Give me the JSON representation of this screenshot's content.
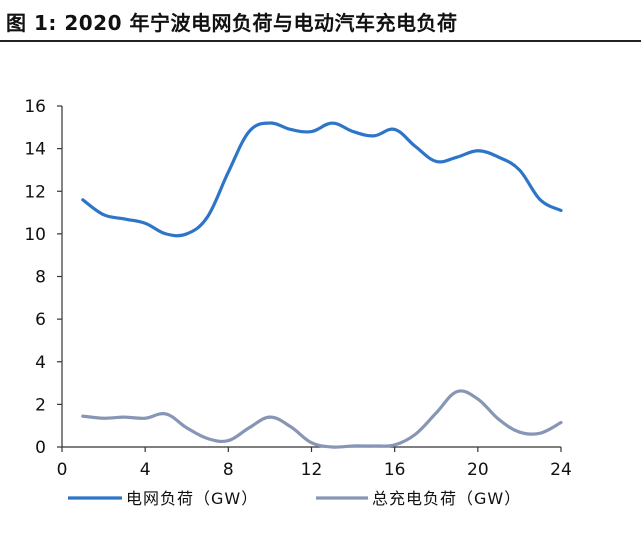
{
  "figure": {
    "title": "图 1:  2020 年宁波电网负荷与电动汽车充电负荷"
  },
  "colors": {
    "series_grid": "#2E75C8",
    "series_ev": "#8696B4",
    "axis": "#333333",
    "text": "#111111"
  },
  "chart_data": {
    "type": "line",
    "title": "2020 年宁波电网负荷与电动汽车充电负荷",
    "xlabel": "",
    "ylabel": "",
    "xlim": [
      0,
      24
    ],
    "ylim": [
      0,
      16
    ],
    "xticks": [
      0,
      4,
      8,
      12,
      16,
      20,
      24
    ],
    "yticks": [
      0,
      2,
      4,
      6,
      8,
      10,
      12,
      14,
      16
    ],
    "legend_position": "bottom",
    "grid": false,
    "series": [
      {
        "name": "电网负荷（GW）",
        "x": [
          1,
          2,
          3,
          4,
          5,
          6,
          7,
          8,
          9,
          10,
          11,
          12,
          13,
          14,
          15,
          16,
          17,
          18,
          19,
          20,
          21,
          22,
          23,
          24
        ],
        "values": [
          11.6,
          10.9,
          10.7,
          10.5,
          10.0,
          10.0,
          10.8,
          12.9,
          14.8,
          15.2,
          14.9,
          14.8,
          15.2,
          14.8,
          14.6,
          14.9,
          14.1,
          13.4,
          13.6,
          13.9,
          13.6,
          13.0,
          11.6,
          11.1
        ]
      },
      {
        "name": "总充电负荷（GW）",
        "x": [
          1,
          2,
          3,
          4,
          5,
          6,
          7,
          8,
          9,
          10,
          11,
          12,
          13,
          14,
          15,
          16,
          17,
          18,
          19,
          20,
          21,
          22,
          23,
          24
        ],
        "values": [
          1.45,
          1.35,
          1.4,
          1.35,
          1.55,
          0.9,
          0.4,
          0.3,
          0.9,
          1.4,
          0.95,
          0.2,
          0.0,
          0.05,
          0.05,
          0.1,
          0.6,
          1.6,
          2.6,
          2.25,
          1.3,
          0.7,
          0.65,
          1.15
        ]
      }
    ]
  }
}
